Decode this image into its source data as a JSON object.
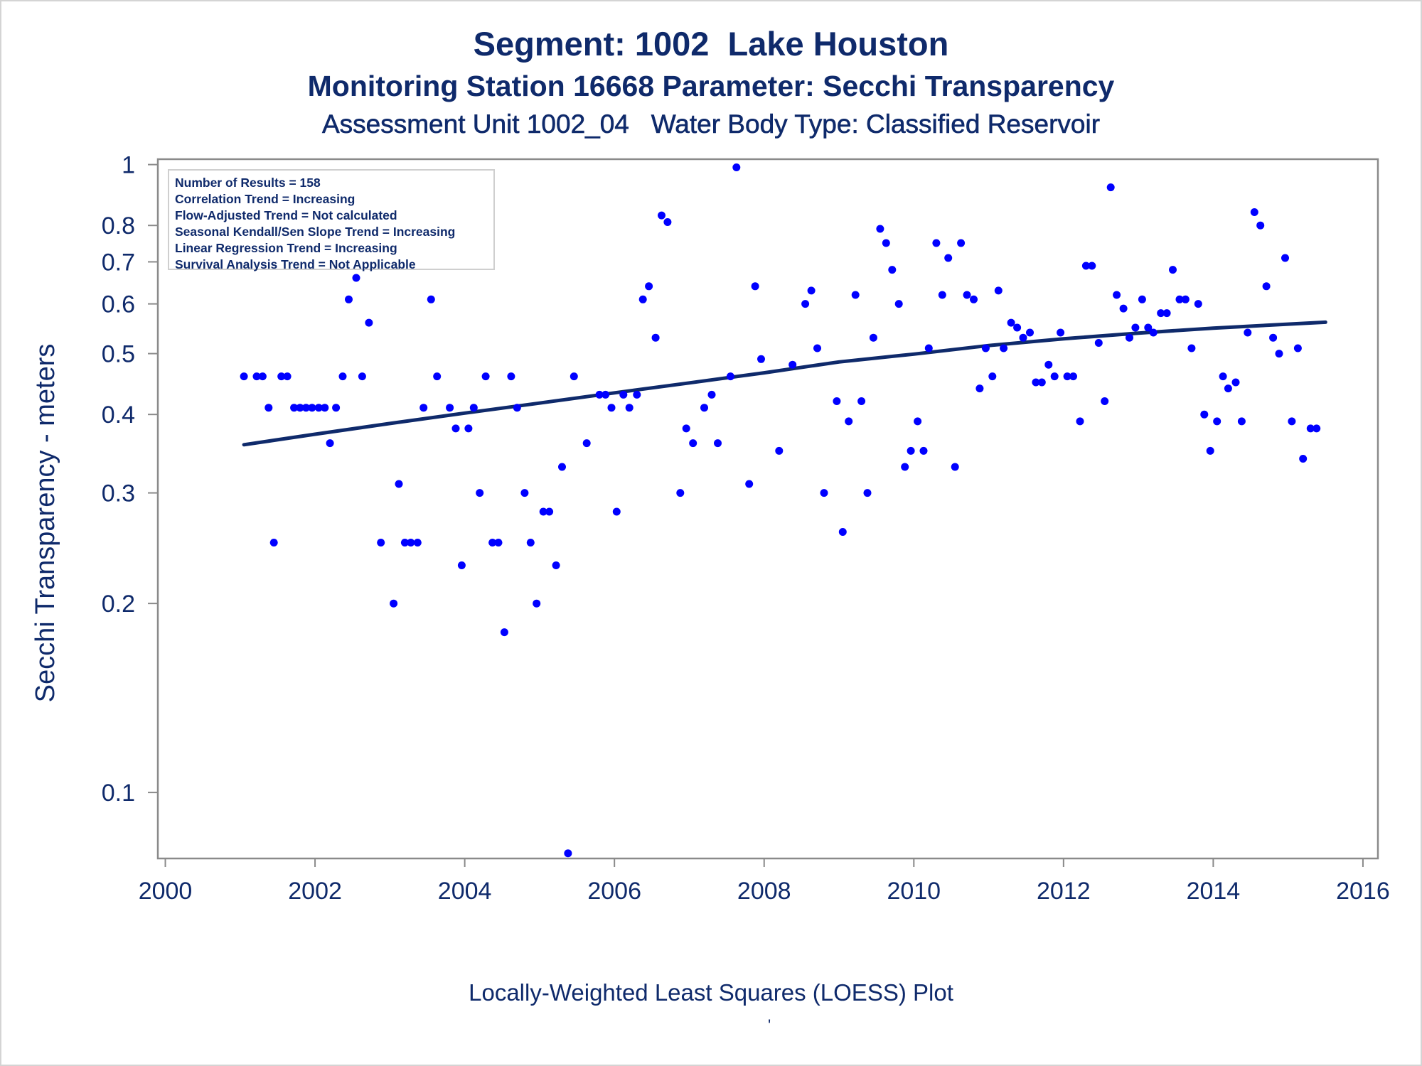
{
  "titles": {
    "line1": "Segment: 1002  Lake Houston",
    "line2": "Monitoring Station 16668 Parameter: Secchi Transparency",
    "line3": "Assessment Unit 1002_04   Water Body Type: Classified Reservoir"
  },
  "stats_box": [
    "Number of Results = 158",
    "Correlation Trend = Increasing",
    "Flow-Adjusted Trend = Not calculated",
    "Seasonal Kendall/Sen Slope Trend = Increasing",
    "Linear Regression Trend = Increasing",
    "Survival Analysis Trend = Not Applicable"
  ],
  "footnote": "Locally-Weighted Least Squares (LOESS) Plot",
  "footnote_mark": "'",
  "colors": {
    "text": "#0f2a6b",
    "points": "#0000ff",
    "trend": "#0f2a6b",
    "axis": "#8a8a8a"
  },
  "chart_data": {
    "type": "scatter",
    "ylabel": "Secchi Transparency - meters",
    "xlabel": "",
    "y_scale": "log",
    "x_ticks": [
      2000,
      2002,
      2004,
      2006,
      2008,
      2010,
      2012,
      2014,
      2016
    ],
    "y_ticks": [
      0.1,
      0.2,
      0.3,
      0.4,
      0.5,
      0.6,
      0.7,
      0.8,
      1
    ],
    "y_tick_labels": [
      "0.1",
      "0.2",
      "0.3",
      "0.4",
      "0.5",
      "0.6",
      "0.7",
      "0.8",
      "1"
    ],
    "xlim": [
      1999.9,
      2016.2
    ],
    "ylim": [
      0.0785,
      1.02
    ],
    "points": [
      [
        2001.05,
        0.46
      ],
      [
        2001.22,
        0.46
      ],
      [
        2001.3,
        0.46
      ],
      [
        2001.38,
        0.41
      ],
      [
        2001.45,
        0.25
      ],
      [
        2001.55,
        0.46
      ],
      [
        2001.63,
        0.46
      ],
      [
        2001.72,
        0.41
      ],
      [
        2001.8,
        0.41
      ],
      [
        2001.88,
        0.41
      ],
      [
        2001.96,
        0.41
      ],
      [
        2002.05,
        0.41
      ],
      [
        2002.13,
        0.41
      ],
      [
        2002.2,
        0.36
      ],
      [
        2002.28,
        0.41
      ],
      [
        2002.37,
        0.46
      ],
      [
        2002.45,
        0.61
      ],
      [
        2002.55,
        0.66
      ],
      [
        2002.63,
        0.46
      ],
      [
        2002.72,
        0.56
      ],
      [
        2002.88,
        0.25
      ],
      [
        2003.05,
        0.2
      ],
      [
        2003.12,
        0.31
      ],
      [
        2003.2,
        0.25
      ],
      [
        2003.28,
        0.25
      ],
      [
        2003.37,
        0.25
      ],
      [
        2003.45,
        0.41
      ],
      [
        2003.55,
        0.61
      ],
      [
        2003.63,
        0.46
      ],
      [
        2003.8,
        0.41
      ],
      [
        2003.88,
        0.38
      ],
      [
        2003.96,
        0.23
      ],
      [
        2004.05,
        0.38
      ],
      [
        2004.12,
        0.41
      ],
      [
        2004.2,
        0.3
      ],
      [
        2004.28,
        0.46
      ],
      [
        2004.37,
        0.25
      ],
      [
        2004.45,
        0.25
      ],
      [
        2004.53,
        0.18
      ],
      [
        2004.62,
        0.46
      ],
      [
        2004.7,
        0.41
      ],
      [
        2004.8,
        0.3
      ],
      [
        2004.88,
        0.25
      ],
      [
        2004.96,
        0.2
      ],
      [
        2005.05,
        0.28
      ],
      [
        2005.13,
        0.28
      ],
      [
        2005.22,
        0.23
      ],
      [
        2005.3,
        0.33
      ],
      [
        2005.38,
        0.08
      ],
      [
        2005.46,
        0.46
      ],
      [
        2005.63,
        0.36
      ],
      [
        2005.8,
        0.43
      ],
      [
        2005.88,
        0.43
      ],
      [
        2005.96,
        0.41
      ],
      [
        2006.03,
        0.28
      ],
      [
        2006.12,
        0.43
      ],
      [
        2006.2,
        0.41
      ],
      [
        2006.3,
        0.43
      ],
      [
        2006.38,
        0.61
      ],
      [
        2006.46,
        0.64
      ],
      [
        2006.55,
        0.53
      ],
      [
        2006.63,
        0.83
      ],
      [
        2006.71,
        0.81
      ],
      [
        2006.88,
        0.3
      ],
      [
        2006.96,
        0.38
      ],
      [
        2007.05,
        0.36
      ],
      [
        2007.2,
        0.41
      ],
      [
        2007.3,
        0.43
      ],
      [
        2007.38,
        0.36
      ],
      [
        2007.55,
        0.46
      ],
      [
        2007.63,
        0.99
      ],
      [
        2007.8,
        0.31
      ],
      [
        2007.88,
        0.64
      ],
      [
        2007.96,
        0.49
      ],
      [
        2008.2,
        0.35
      ],
      [
        2008.38,
        0.48
      ],
      [
        2008.55,
        0.6
      ],
      [
        2008.63,
        0.63
      ],
      [
        2008.71,
        0.51
      ],
      [
        2008.8,
        0.3
      ],
      [
        2008.97,
        0.42
      ],
      [
        2009.05,
        0.26
      ],
      [
        2009.13,
        0.39
      ],
      [
        2009.22,
        0.62
      ],
      [
        2009.3,
        0.42
      ],
      [
        2009.38,
        0.3
      ],
      [
        2009.46,
        0.53
      ],
      [
        2009.55,
        0.79
      ],
      [
        2009.63,
        0.75
      ],
      [
        2009.71,
        0.68
      ],
      [
        2009.8,
        0.6
      ],
      [
        2009.88,
        0.33
      ],
      [
        2009.96,
        0.35
      ],
      [
        2010.05,
        0.39
      ],
      [
        2010.13,
        0.35
      ],
      [
        2010.2,
        0.51
      ],
      [
        2010.3,
        0.75
      ],
      [
        2010.38,
        0.62
      ],
      [
        2010.46,
        0.71
      ],
      [
        2010.55,
        0.33
      ],
      [
        2010.63,
        0.75
      ],
      [
        2010.71,
        0.62
      ],
      [
        2010.8,
        0.61
      ],
      [
        2010.88,
        0.44
      ],
      [
        2010.96,
        0.51
      ],
      [
        2011.05,
        0.46
      ],
      [
        2011.13,
        0.63
      ],
      [
        2011.2,
        0.51
      ],
      [
        2011.3,
        0.56
      ],
      [
        2011.38,
        0.55
      ],
      [
        2011.46,
        0.53
      ],
      [
        2011.55,
        0.54
      ],
      [
        2011.63,
        0.45
      ],
      [
        2011.71,
        0.45
      ],
      [
        2011.8,
        0.48
      ],
      [
        2011.88,
        0.46
      ],
      [
        2011.96,
        0.54
      ],
      [
        2012.05,
        0.46
      ],
      [
        2012.13,
        0.46
      ],
      [
        2012.22,
        0.39
      ],
      [
        2012.3,
        0.69
      ],
      [
        2012.38,
        0.69
      ],
      [
        2012.47,
        0.52
      ],
      [
        2012.55,
        0.42
      ],
      [
        2012.63,
        0.92
      ],
      [
        2012.71,
        0.62
      ],
      [
        2012.8,
        0.59
      ],
      [
        2012.88,
        0.53
      ],
      [
        2012.96,
        0.55
      ],
      [
        2013.05,
        0.61
      ],
      [
        2013.13,
        0.55
      ],
      [
        2013.2,
        0.54
      ],
      [
        2013.3,
        0.58
      ],
      [
        2013.38,
        0.58
      ],
      [
        2013.46,
        0.68
      ],
      [
        2013.55,
        0.61
      ],
      [
        2013.63,
        0.61
      ],
      [
        2013.71,
        0.51
      ],
      [
        2013.8,
        0.6
      ],
      [
        2013.88,
        0.4
      ],
      [
        2013.96,
        0.35
      ],
      [
        2014.05,
        0.39
      ],
      [
        2014.13,
        0.46
      ],
      [
        2014.2,
        0.44
      ],
      [
        2014.3,
        0.45
      ],
      [
        2014.38,
        0.39
      ],
      [
        2014.46,
        0.54
      ],
      [
        2014.55,
        0.84
      ],
      [
        2014.63,
        0.8
      ],
      [
        2014.71,
        0.64
      ],
      [
        2014.8,
        0.53
      ],
      [
        2014.88,
        0.5
      ],
      [
        2014.96,
        0.71
      ],
      [
        2015.05,
        0.39
      ],
      [
        2015.13,
        0.51
      ],
      [
        2015.2,
        0.34
      ],
      [
        2015.3,
        0.38
      ],
      [
        2015.38,
        0.38
      ]
    ],
    "trend_line": {
      "x": [
        2001.05,
        2002.0,
        2003.0,
        2004.0,
        2005.0,
        2006.0,
        2007.0,
        2008.0,
        2009.0,
        2010.0,
        2011.0,
        2012.0,
        2013.0,
        2014.0,
        2015.0,
        2015.5
      ],
      "y": [
        0.358,
        0.372,
        0.387,
        0.402,
        0.417,
        0.433,
        0.449,
        0.466,
        0.485,
        0.499,
        0.515,
        0.528,
        0.539,
        0.549,
        0.557,
        0.561
      ]
    }
  }
}
